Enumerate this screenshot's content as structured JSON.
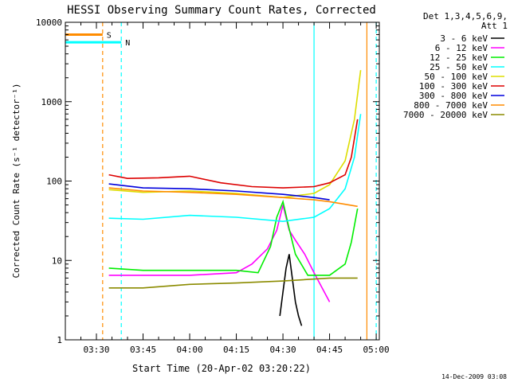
{
  "chart_data": {
    "type": "line",
    "title": "HESSI Observing Summary Count Rates, Corrected",
    "xlabel": "Start Time (20-Apr-02 03:20:22)",
    "ylabel": "Corrected Count Rate (s⁻¹ detector⁻¹)",
    "y_scale": "log",
    "ylim": [
      1,
      10000
    ],
    "xlim": [
      "03:20",
      "05:01"
    ],
    "x_ticks": [
      "03:30",
      "03:45",
      "04:00",
      "04:15",
      "04:30",
      "04:45",
      "05:00"
    ],
    "y_ticks": [
      "1",
      "10",
      "100",
      "1000",
      "10000"
    ],
    "grid": false,
    "legend_placement": "right",
    "legend_title": [
      "Det 1,3,4,5,6,9,",
      "Att 1"
    ],
    "series": [
      {
        "name": "3 - 6 keV",
        "color": "#000000",
        "x": [
          "04:29",
          "04:30",
          "04:31",
          "04:32",
          "04:33",
          "04:34",
          "04:35",
          "04:36"
        ],
        "values": [
          2,
          4,
          8,
          12,
          6,
          3,
          2,
          1.5
        ]
      },
      {
        "name": "6 - 12 keV",
        "color": "#ff00ff",
        "x": [
          "03:34",
          "03:45",
          "04:00",
          "04:15",
          "04:20",
          "04:25",
          "04:28",
          "04:30",
          "04:32",
          "04:34",
          "04:37",
          "04:40",
          "04:45"
        ],
        "values": [
          6.5,
          6.5,
          6.5,
          7,
          9,
          14,
          24,
          50,
          24,
          18,
          12,
          7,
          3
        ]
      },
      {
        "name": "12 - 25 keV",
        "color": "#00ee00",
        "x": [
          "03:34",
          "03:45",
          "04:00",
          "04:15",
          "04:22",
          "04:26",
          "04:28",
          "04:30",
          "04:32",
          "04:34",
          "04:38",
          "04:45",
          "04:50",
          "04:52",
          "04:54"
        ],
        "values": [
          8,
          7.5,
          7.5,
          7.5,
          7,
          15,
          35,
          55,
          25,
          12,
          6.5,
          6.5,
          9,
          17,
          45
        ]
      },
      {
        "name": "25 - 50 keV",
        "color": "#00ffff",
        "x": [
          "03:34",
          "03:45",
          "04:00",
          "04:15",
          "04:30",
          "04:40",
          "04:45",
          "04:50",
          "04:53",
          "04:55"
        ],
        "values": [
          34,
          33,
          37,
          35,
          31,
          35,
          45,
          80,
          200,
          700
        ]
      },
      {
        "name": "50 - 100 keV",
        "color": "#dddd00",
        "x": [
          "03:34",
          "03:45",
          "04:00",
          "04:15",
          "04:30",
          "04:40",
          "04:45",
          "04:50",
          "04:53",
          "04:55"
        ],
        "values": [
          78,
          72,
          75,
          70,
          62,
          70,
          90,
          180,
          600,
          2500
        ]
      },
      {
        "name": "100 - 300 keV",
        "color": "#dd0000",
        "x": [
          "03:34",
          "03:40",
          "03:50",
          "04:00",
          "04:10",
          "04:20",
          "04:30",
          "04:40",
          "04:45",
          "04:50",
          "04:52",
          "04:54"
        ],
        "values": [
          120,
          108,
          110,
          115,
          95,
          85,
          82,
          85,
          95,
          120,
          200,
          600
        ]
      },
      {
        "name": "300 - 800 keV",
        "color": "#0000dd",
        "x": [
          "03:34",
          "03:45",
          "04:00",
          "04:15",
          "04:30",
          "04:40",
          "04:45"
        ],
        "values": [
          92,
          82,
          80,
          75,
          68,
          62,
          58
        ]
      },
      {
        "name": "800 - 7000 keV",
        "color": "#ff8c00",
        "x": [
          "03:34",
          "03:45",
          "04:00",
          "04:15",
          "04:30",
          "04:40",
          "04:45",
          "04:50",
          "04:54"
        ],
        "values": [
          82,
          75,
          72,
          68,
          62,
          58,
          55,
          51,
          48
        ]
      },
      {
        "name": "7000 - 20000 keV",
        "color": "#8b8b00",
        "x": [
          "03:34",
          "03:45",
          "04:00",
          "04:15",
          "04:30",
          "04:45",
          "04:54"
        ],
        "values": [
          4.5,
          4.5,
          5,
          5.2,
          5.5,
          6,
          6
        ]
      }
    ],
    "annotations": [
      {
        "label": "S",
        "color": "#ff8c00",
        "x": [
          "03:20",
          "03:32"
        ],
        "y": 7000
      },
      {
        "label": "N",
        "color": "#00ffff",
        "x": [
          "03:20",
          "03:38"
        ],
        "y": 5600
      }
    ],
    "vertical_markers": [
      {
        "color": "#ff8c00",
        "x": "03:32",
        "style": "dashed"
      },
      {
        "color": "#00ffff",
        "x": "03:38",
        "style": "dashed"
      },
      {
        "color": "#00ffff",
        "x": "04:40",
        "style": "solid"
      },
      {
        "color": "#ff8c00",
        "x": "04:57",
        "style": "solid"
      },
      {
        "color": "#00ffff",
        "x": "05:00",
        "style": "dashed"
      }
    ]
  },
  "footer": {
    "timestamp": "14-Dec-2009 03:08"
  }
}
